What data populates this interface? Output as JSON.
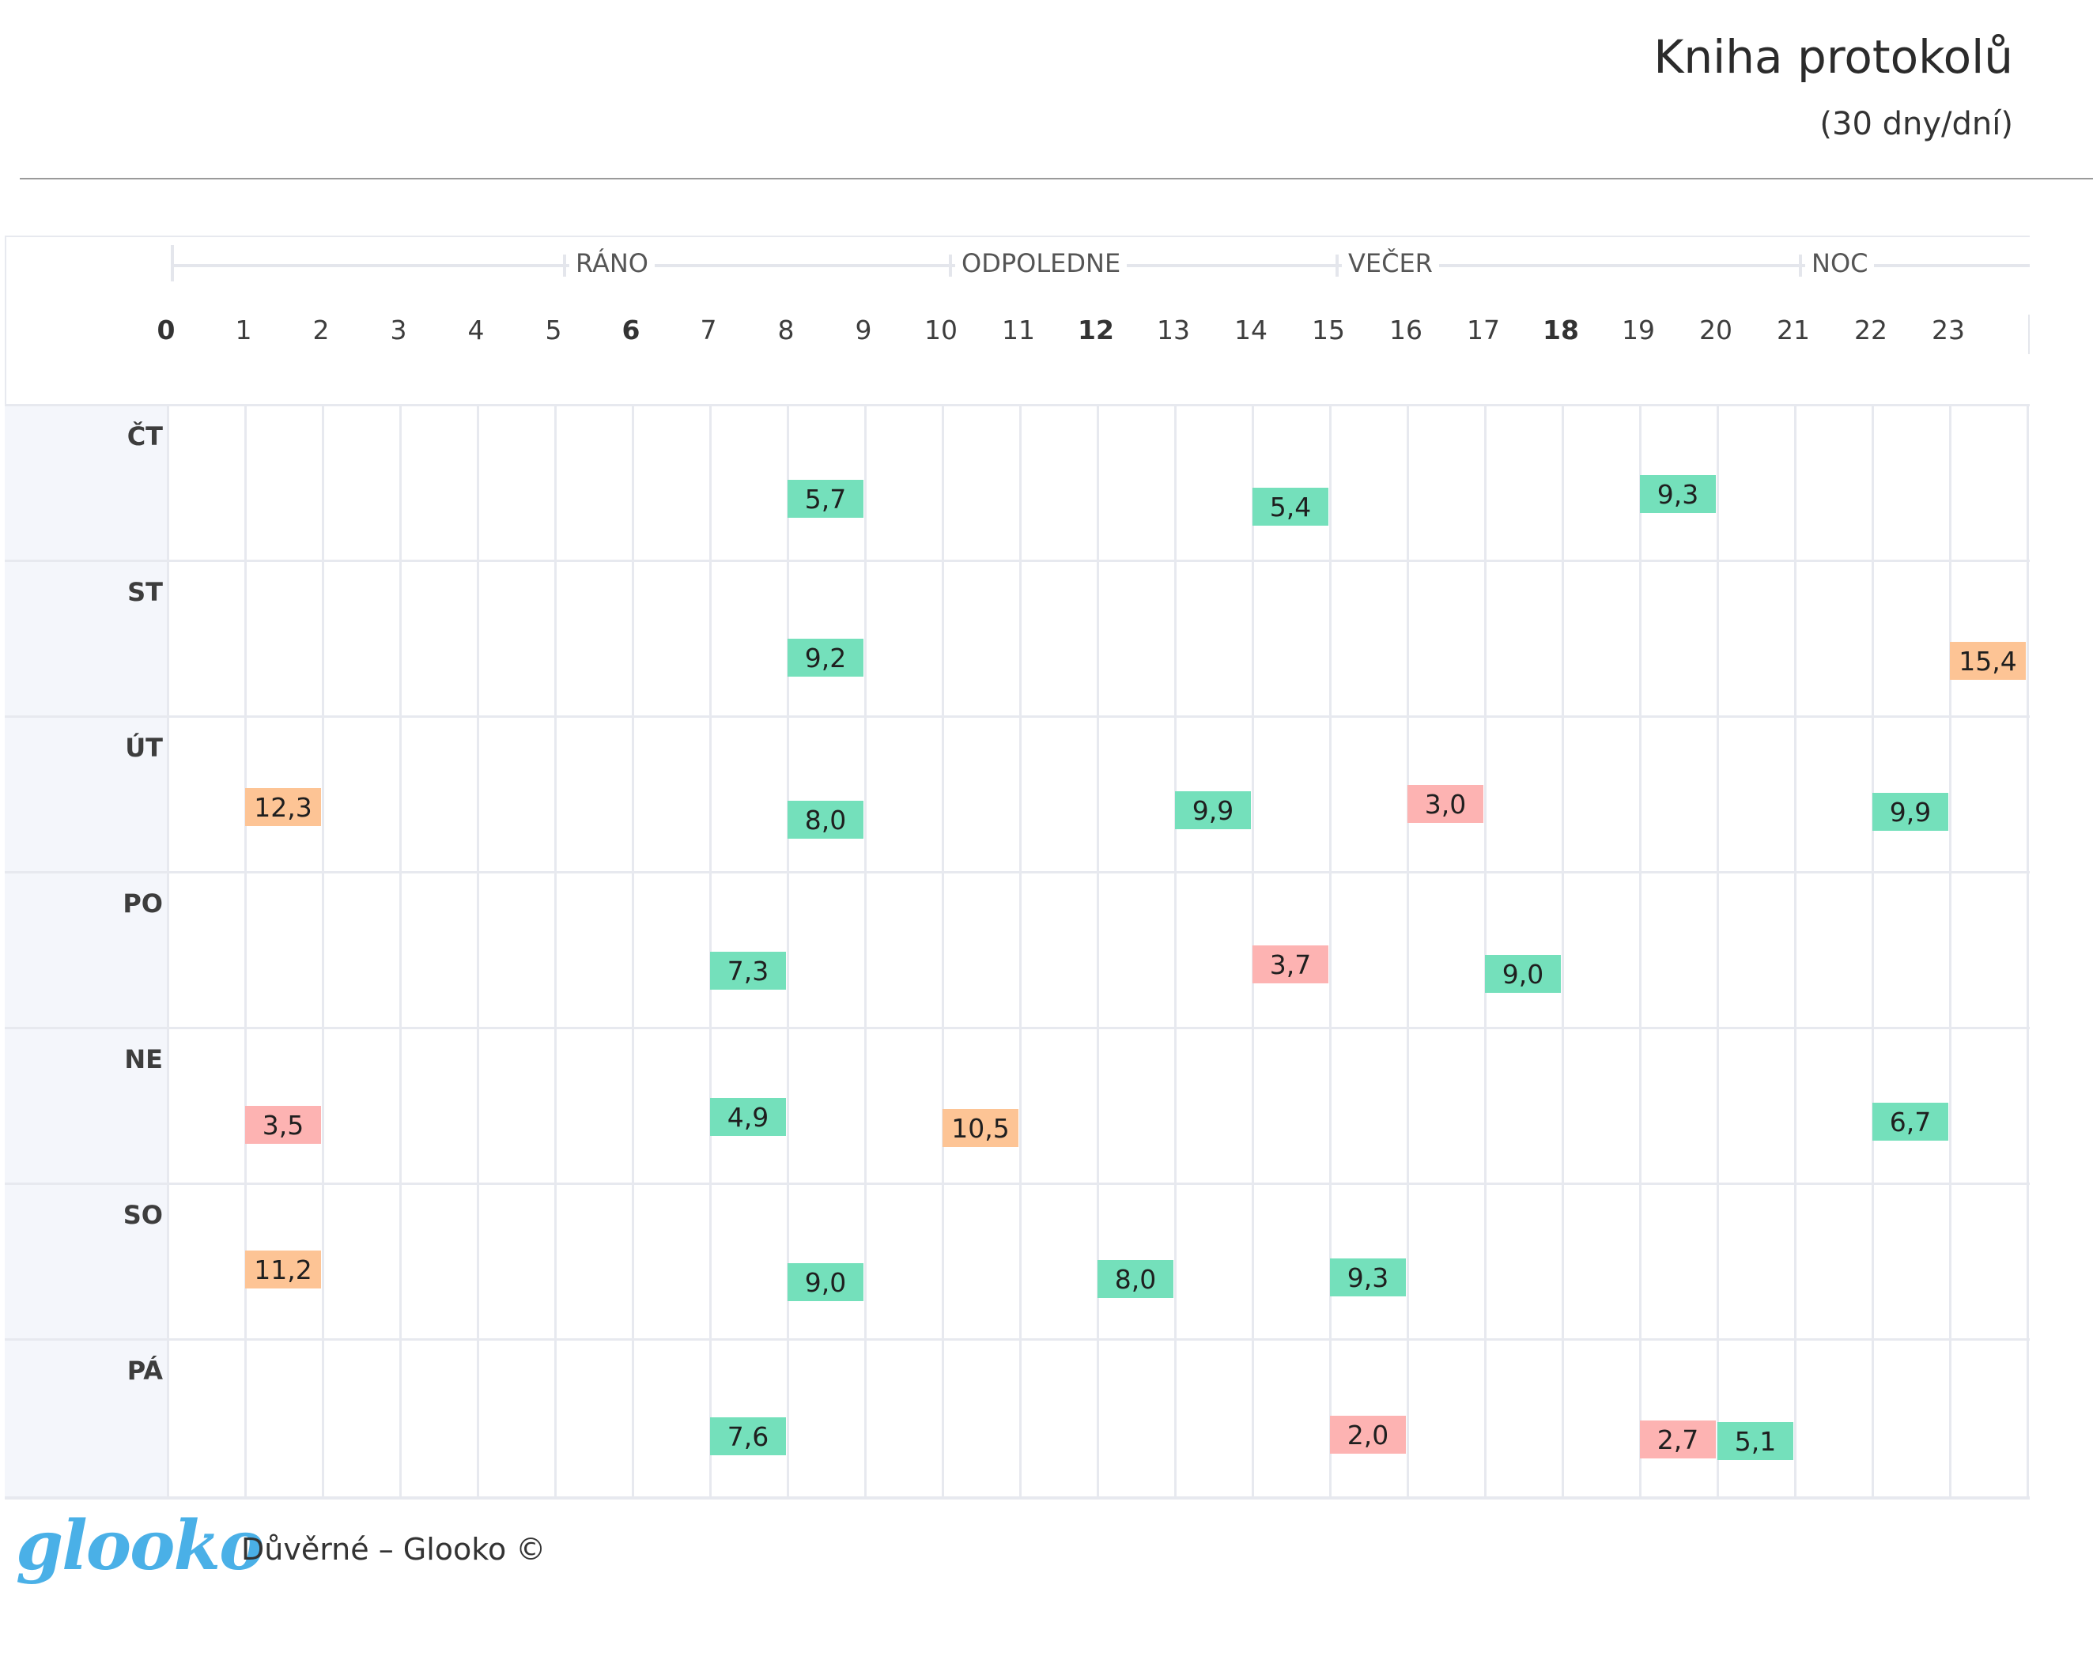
{
  "header": {
    "title": "Kniha protokolů",
    "subtitle": "(30 dny/dní)"
  },
  "periods": [
    "RÁNO",
    "ODPOLEDNE",
    "VEČER",
    "NOC"
  ],
  "hours": [
    "0",
    "1",
    "2",
    "3",
    "4",
    "5",
    "6",
    "7",
    "8",
    "9",
    "10",
    "11",
    "12",
    "13",
    "14",
    "15",
    "16",
    "17",
    "18",
    "19",
    "20",
    "21",
    "22",
    "23"
  ],
  "bold_hours": [
    "0",
    "6",
    "12",
    "18"
  ],
  "days": [
    "ČT",
    "ST",
    "ÚT",
    "PO",
    "NE",
    "SO",
    "PÁ"
  ],
  "colors": {
    "normal": "#74e0bb",
    "high": "#fdc495",
    "low": "#fdb3b2",
    "logo": "#4ab0e7"
  },
  "readings": [
    {
      "day": 0,
      "hour": 8.5,
      "value": "5,7",
      "status": "normal"
    },
    {
      "day": 0,
      "hour": 14.5,
      "value": "5,4",
      "status": "normal"
    },
    {
      "day": 0,
      "hour": 19.5,
      "value": "9,3",
      "status": "normal"
    },
    {
      "day": 1,
      "hour": 8.5,
      "value": "9,2",
      "status": "normal"
    },
    {
      "day": 1,
      "hour": 23.5,
      "value": "15,4",
      "status": "high"
    },
    {
      "day": 2,
      "hour": 1.5,
      "value": "12,3",
      "status": "high"
    },
    {
      "day": 2,
      "hour": 8.5,
      "value": "8,0",
      "status": "normal"
    },
    {
      "day": 2,
      "hour": 13.5,
      "value": "9,9",
      "status": "normal"
    },
    {
      "day": 2,
      "hour": 16.5,
      "value": "3,0",
      "status": "low"
    },
    {
      "day": 2,
      "hour": 22.5,
      "value": "9,9",
      "status": "normal"
    },
    {
      "day": 3,
      "hour": 7.5,
      "value": "7,3",
      "status": "normal"
    },
    {
      "day": 3,
      "hour": 14.5,
      "value": "3,7",
      "status": "low"
    },
    {
      "day": 3,
      "hour": 17.5,
      "value": "9,0",
      "status": "normal"
    },
    {
      "day": 4,
      "hour": 1.5,
      "value": "3,5",
      "status": "low"
    },
    {
      "day": 4,
      "hour": 7.5,
      "value": "4,9",
      "status": "normal"
    },
    {
      "day": 4,
      "hour": 10.5,
      "value": "10,5",
      "status": "high"
    },
    {
      "day": 4,
      "hour": 22.5,
      "value": "6,7",
      "status": "normal"
    },
    {
      "day": 5,
      "hour": 1.5,
      "value": "11,2",
      "status": "high"
    },
    {
      "day": 5,
      "hour": 8.5,
      "value": "9,0",
      "status": "normal"
    },
    {
      "day": 5,
      "hour": 12.5,
      "value": "8,0",
      "status": "normal"
    },
    {
      "day": 5,
      "hour": 15.5,
      "value": "9,3",
      "status": "normal"
    },
    {
      "day": 6,
      "hour": 7.5,
      "value": "7,6",
      "status": "normal"
    },
    {
      "day": 6,
      "hour": 15.5,
      "value": "2,0",
      "status": "low"
    },
    {
      "day": 6,
      "hour": 19.5,
      "value": "2,7",
      "status": "low"
    },
    {
      "day": 6,
      "hour": 20.5,
      "value": "5,1",
      "status": "normal"
    }
  ],
  "footer": {
    "logo": "glooko",
    "text": "Důvěrné – Glooko ©"
  }
}
